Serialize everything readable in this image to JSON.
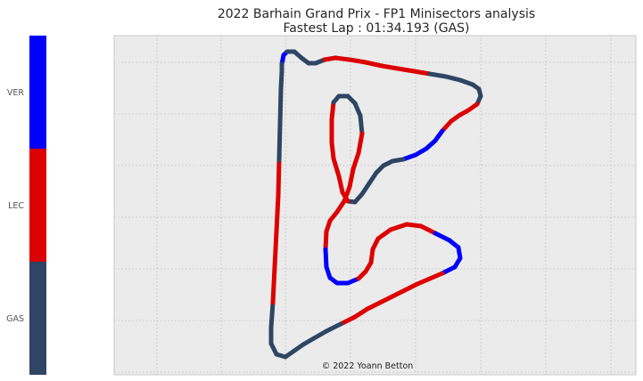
{
  "chart_data": {
    "type": "scatter",
    "title": "2022 Barhain Grand Prix - FP1 Minisectors analysis",
    "subtitle": "Fastest Lap : 01:34.193 (GAS)",
    "credit": "© 2022 Yoann Betton",
    "xlabel": "",
    "ylabel": "",
    "grid": true,
    "axis_ticks_labeled": false,
    "colorbar": {
      "placement": "left",
      "drivers": [
        {
          "name": "VER",
          "color": "#0000ff"
        },
        {
          "name": "LEC",
          "color": "#dd0000"
        },
        {
          "name": "GAS",
          "color": "#2e4564"
        }
      ]
    },
    "track_points": [
      [
        316,
        72
      ],
      [
        318,
        62
      ],
      [
        322,
        58
      ],
      [
        330,
        58
      ],
      [
        338,
        65
      ],
      [
        346,
        71
      ],
      [
        354,
        71
      ],
      [
        364,
        67
      ],
      [
        376,
        65
      ],
      [
        392,
        67
      ],
      [
        410,
        70
      ],
      [
        428,
        74
      ],
      [
        446,
        77
      ],
      [
        464,
        80
      ],
      [
        482,
        83
      ],
      [
        500,
        86
      ],
      [
        516,
        90
      ],
      [
        530,
        95
      ],
      [
        537,
        100
      ],
      [
        539,
        108
      ],
      [
        535,
        117
      ],
      [
        525,
        124
      ],
      [
        516,
        129
      ],
      [
        506,
        136
      ],
      [
        496,
        147
      ],
      [
        488,
        158
      ],
      [
        478,
        167
      ],
      [
        466,
        174
      ],
      [
        452,
        179
      ],
      [
        440,
        181
      ],
      [
        430,
        186
      ],
      [
        422,
        194
      ],
      [
        414,
        206
      ],
      [
        406,
        218
      ],
      [
        398,
        227
      ],
      [
        390,
        226
      ],
      [
        384,
        216
      ],
      [
        380,
        198
      ],
      [
        374,
        178
      ],
      [
        372,
        160
      ],
      [
        372,
        134
      ],
      [
        374,
        115
      ],
      [
        380,
        108
      ],
      [
        390,
        108
      ],
      [
        398,
        116
      ],
      [
        404,
        130
      ],
      [
        406,
        150
      ],
      [
        402,
        172
      ],
      [
        396,
        190
      ],
      [
        392,
        210
      ],
      [
        386,
        226
      ],
      [
        378,
        238
      ],
      [
        370,
        248
      ],
      [
        366,
        260
      ],
      [
        365,
        280
      ],
      [
        366,
        300
      ],
      [
        370,
        312
      ],
      [
        378,
        318
      ],
      [
        390,
        318
      ],
      [
        402,
        313
      ],
      [
        410,
        305
      ],
      [
        416,
        295
      ],
      [
        418,
        280
      ],
      [
        424,
        268
      ],
      [
        438,
        258
      ],
      [
        456,
        252
      ],
      [
        472,
        254
      ],
      [
        488,
        262
      ],
      [
        504,
        270
      ],
      [
        514,
        278
      ],
      [
        516,
        290
      ],
      [
        510,
        300
      ],
      [
        496,
        307
      ],
      [
        482,
        313
      ],
      [
        468,
        319
      ],
      [
        454,
        326
      ],
      [
        440,
        333
      ],
      [
        426,
        340
      ],
      [
        412,
        347
      ],
      [
        398,
        356
      ],
      [
        382,
        364
      ],
      [
        366,
        372
      ],
      [
        352,
        380
      ],
      [
        340,
        387
      ],
      [
        330,
        394
      ],
      [
        320,
        401
      ],
      [
        310,
        398
      ],
      [
        304,
        386
      ],
      [
        304,
        368
      ],
      [
        306,
        340
      ],
      [
        308,
        300
      ],
      [
        310,
        260
      ],
      [
        312,
        220
      ],
      [
        313,
        180
      ],
      [
        314,
        140
      ],
      [
        315,
        100
      ],
      [
        316,
        80
      ]
    ],
    "segment_drivers": [
      "VER",
      "VER",
      "GAS",
      "GAS",
      "GAS",
      "GAS",
      "GAS",
      "LEC",
      "LEC",
      "LEC",
      "LEC",
      "LEC",
      "LEC",
      "LEC",
      "GAS",
      "GAS",
      "GAS",
      "GAS",
      "GAS",
      "GAS",
      "LEC",
      "LEC",
      "LEC",
      "LEC",
      "VER",
      "VER",
      "VER",
      "VER",
      "GAS",
      "GAS",
      "GAS",
      "GAS",
      "GAS",
      "GAS",
      "GAS",
      "LEC",
      "LEC",
      "LEC",
      "LEC",
      "LEC",
      "LEC",
      "GAS",
      "GAS",
      "GAS",
      "GAS",
      "GAS",
      "LEC",
      "LEC",
      "LEC",
      "LEC",
      "LEC",
      "LEC",
      "LEC",
      "LEC",
      "VER",
      "VER",
      "VER",
      "VER",
      "VER",
      "LEC",
      "LEC",
      "LEC",
      "LEC",
      "LEC",
      "LEC",
      "LEC",
      "LEC",
      "VER",
      "VER",
      "VER",
      "VER",
      "VER",
      "LEC",
      "LEC",
      "LEC",
      "LEC",
      "LEC",
      "LEC",
      "LEC",
      "LEC",
      "GAS",
      "GAS",
      "GAS",
      "GAS",
      "GAS",
      "GAS",
      "GAS",
      "GAS",
      "GAS",
      "LEC",
      "LEC",
      "LEC",
      "LEC",
      "GAS",
      "GAS",
      "GAS",
      "GAS",
      "VER",
      "VER",
      "VER"
    ]
  }
}
